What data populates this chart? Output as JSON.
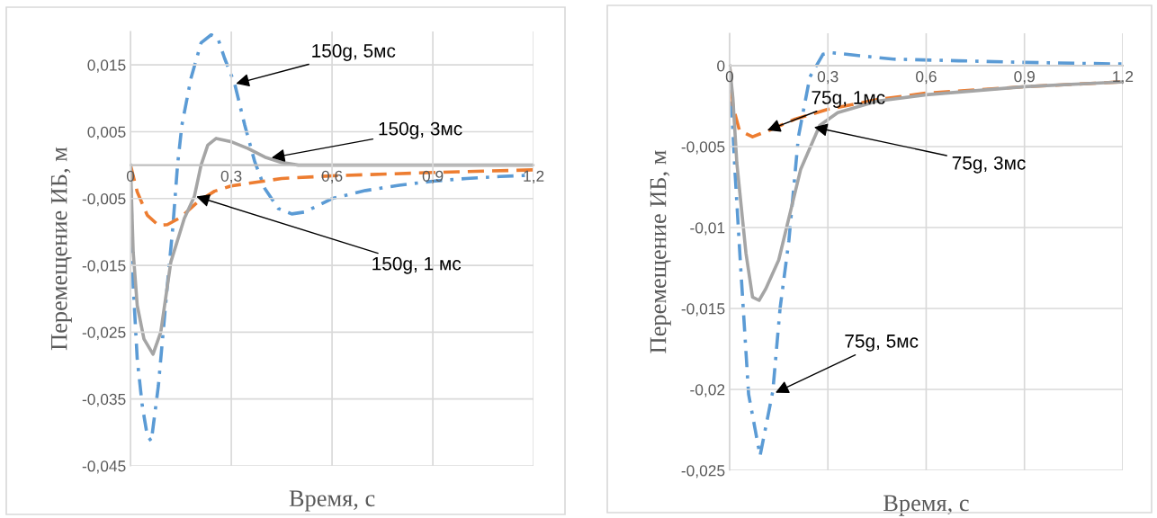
{
  "chart_data": [
    {
      "type": "line",
      "xlabel": "Время, с",
      "ylabel": "Перемещение ИБ, м",
      "xlim": [
        0,
        1.2
      ],
      "xticks": [
        {
          "value": 0,
          "label": "0"
        },
        {
          "value": 0.3,
          "label": "0,3"
        },
        {
          "value": 0.6,
          "label": "0,6"
        },
        {
          "value": 0.9,
          "label": "0,9"
        },
        {
          "value": 1.2,
          "label": "1,2"
        }
      ],
      "ylim": [
        -0.045,
        0.02
      ],
      "yticks": [
        {
          "value": -0.045,
          "label": "-0,045"
        },
        {
          "value": -0.035,
          "label": "-0,035"
        },
        {
          "value": -0.025,
          "label": "-0,025"
        },
        {
          "value": -0.015,
          "label": "-0,015"
        },
        {
          "value": -0.005,
          "label": "-0,005"
        },
        {
          "value": 0.005,
          "label": "0,005"
        },
        {
          "value": 0.015,
          "label": "0,015"
        }
      ],
      "grid": true,
      "series": [
        {
          "color": "#5b9bd5",
          "line_style": "dashdot",
          "x": [
            0,
            0.008,
            0.02,
            0.035,
            0.05,
            0.062,
            0.083,
            0.11,
            0.126,
            0.14,
            0.153,
            0.18,
            0.21,
            0.24,
            0.26,
            0.28,
            0.31,
            0.34,
            0.37,
            0.4,
            0.44,
            0.48,
            0.52,
            0.6,
            0.7,
            0.8,
            0.9,
            1.0,
            1.1,
            1.2
          ],
          "values": [
            0,
            -0.018,
            -0.029,
            -0.036,
            -0.0405,
            -0.0413,
            -0.033,
            -0.0178,
            -0.0093,
            0,
            0.006,
            0.013,
            0.0183,
            0.0195,
            0.019,
            0.016,
            0.0122,
            0.006,
            0.0005,
            -0.0035,
            -0.0065,
            -0.0073,
            -0.007,
            -0.005,
            -0.0038,
            -0.003,
            -0.0024,
            -0.002,
            -0.0017,
            -0.0015
          ]
        },
        {
          "color": "#ed7d31",
          "line_style": "dashed",
          "x": [
            0,
            0.02,
            0.05,
            0.083,
            0.11,
            0.15,
            0.2,
            0.25,
            0.3,
            0.45,
            0.6,
            0.9,
            1.2
          ],
          "values": [
            0,
            -0.004,
            -0.0075,
            -0.009,
            -0.0089,
            -0.0078,
            -0.0055,
            -0.0039,
            -0.0031,
            -0.002,
            -0.0016,
            -0.0011,
            -0.0007
          ]
        },
        {
          "color": "#a5a5a5",
          "line_style": "solid",
          "x": [
            0,
            0.008,
            0.02,
            0.04,
            0.067,
            0.09,
            0.12,
            0.16,
            0.19,
            0.21,
            0.23,
            0.255,
            0.3,
            0.35,
            0.4,
            0.45,
            0.5,
            0.6,
            1.2
          ],
          "values": [
            0,
            -0.013,
            -0.021,
            -0.026,
            -0.0283,
            -0.025,
            -0.0145,
            -0.008,
            -0.0047,
            0,
            0.003,
            0.004,
            0.0035,
            0.0025,
            0.0012,
            0.0004,
            0,
            0,
            0
          ]
        }
      ],
      "annotations": [
        {
          "text": "150g, 5мс",
          "x": 0.314,
          "y": 0.0122
        },
        {
          "text": "150g, 3мс",
          "x": 0.42,
          "y": 0.0011
        },
        {
          "text": "150g, 1 мс",
          "x": 0.196,
          "y": -0.0047
        }
      ]
    },
    {
      "type": "line",
      "xlabel": "Время, с",
      "ylabel": "Перемещение ИБ, м",
      "xlim": [
        0,
        1.2
      ],
      "xticks": [
        {
          "value": 0,
          "label": "0"
        },
        {
          "value": 0.3,
          "label": "0,3"
        },
        {
          "value": 0.6,
          "label": "0,6"
        },
        {
          "value": 0.9,
          "label": "0,9"
        },
        {
          "value": 1.2,
          "label": "1,2"
        }
      ],
      "ylim": [
        -0.025,
        0.002
      ],
      "yticks": [
        {
          "value": -0.025,
          "label": "-0,025"
        },
        {
          "value": -0.02,
          "label": "-0,02"
        },
        {
          "value": -0.015,
          "label": "-0,015"
        },
        {
          "value": -0.01,
          "label": "-0,01"
        },
        {
          "value": -0.005,
          "label": "-0,005"
        },
        {
          "value": 0,
          "label": "0"
        }
      ],
      "grid": true,
      "series": [
        {
          "color": "#5b9bd5",
          "line_style": "dashdot",
          "x": [
            0,
            0.016,
            0.033,
            0.058,
            0.093,
            0.132,
            0.154,
            0.181,
            0.21,
            0.245,
            0.285,
            0.31,
            0.5,
            0.7,
            0.9,
            1.2
          ],
          "values": [
            0,
            -0.0064,
            -0.0122,
            -0.0203,
            -0.0241,
            -0.0201,
            -0.015,
            -0.0108,
            -0.0044,
            -0.0007,
            0.0007,
            0.0008,
            0.0004,
            0.0003,
            0.0002,
            0.0001
          ]
        },
        {
          "color": "#ed7d31",
          "line_style": "dashed",
          "x": [
            0,
            0.01,
            0.03,
            0.07,
            0.12,
            0.2,
            0.3,
            0.45,
            0.6,
            0.9,
            1.2
          ],
          "values": [
            0,
            -0.0025,
            -0.004,
            -0.0044,
            -0.004,
            -0.0033,
            -0.0027,
            -0.0021,
            -0.0017,
            -0.0013,
            -0.001
          ]
        },
        {
          "color": "#a5a5a5",
          "line_style": "solid",
          "x": [
            0,
            0.01,
            0.022,
            0.05,
            0.07,
            0.09,
            0.11,
            0.15,
            0.217,
            0.275,
            0.33,
            0.45,
            0.6,
            0.9,
            1.2
          ],
          "values": [
            0,
            -0.002,
            -0.006,
            -0.0116,
            -0.0143,
            -0.0145,
            -0.0138,
            -0.012,
            -0.0064,
            -0.0037,
            -0.0029,
            -0.0022,
            -0.0018,
            -0.0013,
            -0.001
          ]
        }
      ],
      "annotations": [
        {
          "text": "75g, 1мс",
          "x": 0.115,
          "y": -0.004
        },
        {
          "text": "75g, 3мс",
          "x": 0.258,
          "y": -0.0038
        },
        {
          "text": "75g, 5мс",
          "x": 0.14,
          "y": -0.0202
        }
      ]
    }
  ]
}
